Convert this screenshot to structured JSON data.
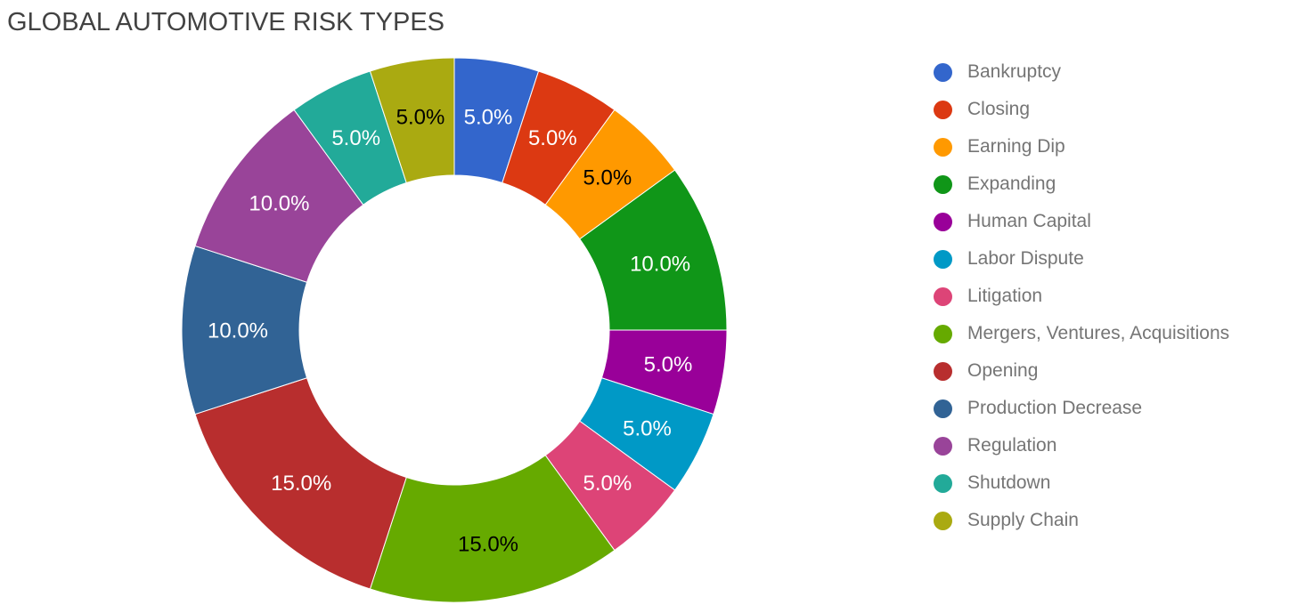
{
  "chart_data": {
    "type": "pie",
    "subtype": "donut",
    "title": "GLOBAL AUTOMOTIVE RISK TYPES",
    "title_color": "#424242",
    "background_color": "#ffffff",
    "donut_hole_ratio": 0.57,
    "start_angle_deg": 0,
    "direction": "clockwise",
    "legend_position": "right",
    "legend_text_color": "#757575",
    "slice_border_color": "#ffffff",
    "slices": [
      {
        "label": "Bankruptcy",
        "value": 5.0,
        "percent_label": "5.0%",
        "color": "#3366cc",
        "label_color": "#ffffff"
      },
      {
        "label": "Closing",
        "value": 5.0,
        "percent_label": "5.0%",
        "color": "#dc3912",
        "label_color": "#ffffff"
      },
      {
        "label": "Earning Dip",
        "value": 5.0,
        "percent_label": "5.0%",
        "color": "#ff9900",
        "label_color": "#000000"
      },
      {
        "label": "Expanding",
        "value": 10.0,
        "percent_label": "10.0%",
        "color": "#109618",
        "label_color": "#ffffff"
      },
      {
        "label": "Human Capital",
        "value": 5.0,
        "percent_label": "5.0%",
        "color": "#990099",
        "label_color": "#ffffff"
      },
      {
        "label": "Labor Dispute",
        "value": 5.0,
        "percent_label": "5.0%",
        "color": "#0099c6",
        "label_color": "#ffffff"
      },
      {
        "label": "Litigation",
        "value": 5.0,
        "percent_label": "5.0%",
        "color": "#dd4477",
        "label_color": "#ffffff"
      },
      {
        "label": "Mergers, Ventures, Acquisitions",
        "value": 15.0,
        "percent_label": "15.0%",
        "color": "#66aa00",
        "label_color": "#000000"
      },
      {
        "label": "Opening",
        "value": 15.0,
        "percent_label": "15.0%",
        "color": "#b82e2e",
        "label_color": "#ffffff"
      },
      {
        "label": "Production Decrease",
        "value": 10.0,
        "percent_label": "10.0%",
        "color": "#316395",
        "label_color": "#ffffff"
      },
      {
        "label": "Regulation",
        "value": 10.0,
        "percent_label": "10.0%",
        "color": "#994499",
        "label_color": "#ffffff"
      },
      {
        "label": "Shutdown",
        "value": 5.0,
        "percent_label": "5.0%",
        "color": "#22aa99",
        "label_color": "#ffffff"
      },
      {
        "label": "Supply Chain",
        "value": 5.0,
        "percent_label": "5.0%",
        "color": "#aaaa11",
        "label_color": "#000000"
      }
    ]
  }
}
